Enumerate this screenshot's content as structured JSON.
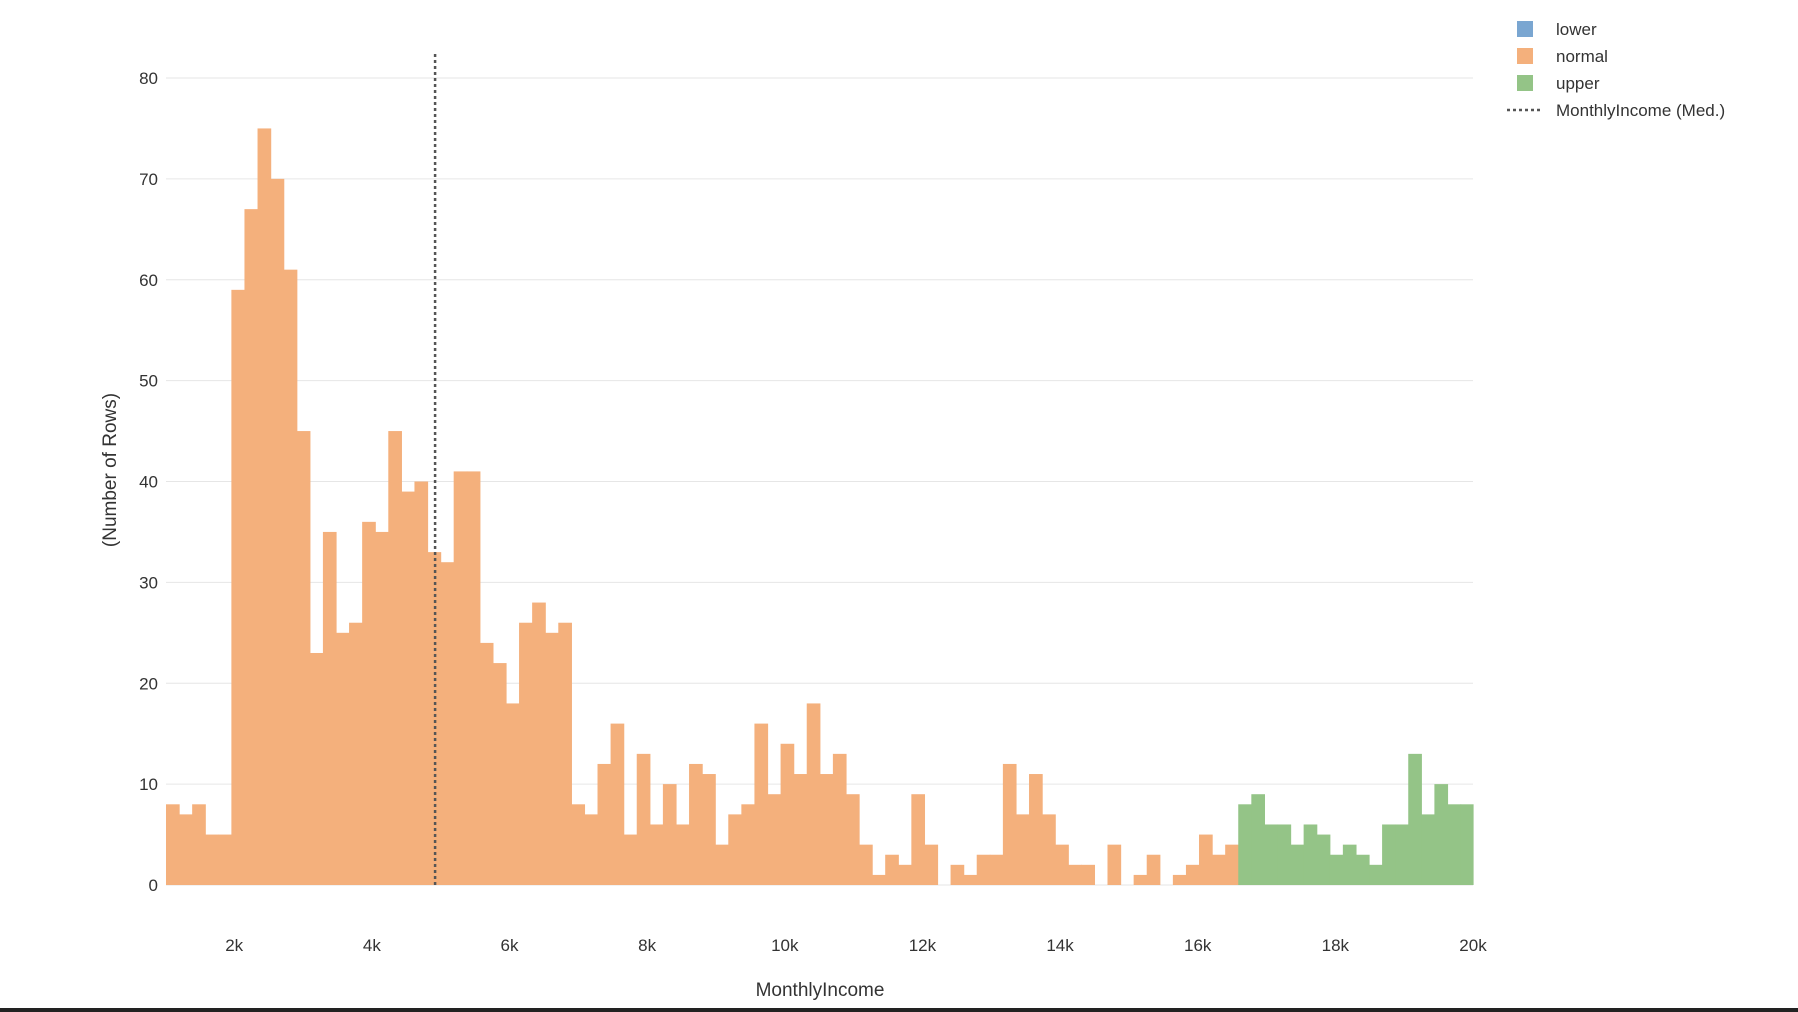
{
  "chart_data": {
    "type": "bar",
    "subtype": "histogram",
    "xlabel": "MonthlyIncome",
    "ylabel": "(Number of Rows)",
    "xlim": [
      1009,
      20000
    ],
    "ylim": [
      0,
      80
    ],
    "x_ticks": [
      2000,
      4000,
      6000,
      8000,
      10000,
      12000,
      14000,
      16000,
      18000,
      20000
    ],
    "x_tick_labels": [
      "2k",
      "4k",
      "6k",
      "8k",
      "10k",
      "12k",
      "14k",
      "16k",
      "18k",
      "20k"
    ],
    "y_ticks": [
      0,
      10,
      20,
      30,
      40,
      50,
      60,
      70,
      80
    ],
    "y_tick_labels": [
      "0",
      "10",
      "20",
      "30",
      "40",
      "50",
      "60",
      "70",
      "80"
    ],
    "grid": true,
    "legend_position": "top-right",
    "bin_width": 190,
    "bins_start": 1009,
    "series": [
      {
        "name": "lower",
        "color": "#7aa6d1",
        "values": []
      },
      {
        "name": "normal",
        "color": "#f4b07c",
        "values": [
          8,
          7,
          8,
          5,
          5,
          59,
          67,
          75,
          70,
          61,
          45,
          23,
          35,
          25,
          26,
          36,
          35,
          45,
          39,
          40,
          33,
          32,
          41,
          41,
          24,
          22,
          18,
          26,
          28,
          25,
          26,
          8,
          7,
          12,
          16,
          5,
          13,
          6,
          10,
          6,
          12,
          11,
          4,
          7,
          8,
          16,
          9,
          14,
          11,
          18,
          11,
          13,
          9,
          4,
          1,
          3,
          2,
          9,
          4,
          0,
          2,
          1,
          3,
          3,
          12,
          7,
          11,
          7,
          4,
          2,
          2,
          0,
          4,
          0,
          1,
          3,
          0,
          1,
          2,
          5,
          3,
          4
        ]
      },
      {
        "name": "upper",
        "color": "#94c487",
        "bins_start": 16589,
        "values": [
          8,
          9,
          6,
          6,
          4,
          6,
          5,
          3,
          4,
          3,
          2,
          6,
          6,
          13,
          7,
          10,
          8,
          8
        ]
      }
    ],
    "reference_lines": [
      {
        "name": "MonthlyIncome (Med.)",
        "axis": "x",
        "value": 4919,
        "style": "dotted",
        "color": "#555555"
      }
    ]
  },
  "legend": {
    "items": [
      {
        "label": "lower",
        "color": "#7aa6d1",
        "kind": "swatch"
      },
      {
        "label": "normal",
        "color": "#f4b07c",
        "kind": "swatch"
      },
      {
        "label": "upper",
        "color": "#94c487",
        "kind": "swatch"
      },
      {
        "label": "MonthlyIncome (Med.)",
        "color": "#555555",
        "kind": "dotted-line"
      }
    ]
  }
}
